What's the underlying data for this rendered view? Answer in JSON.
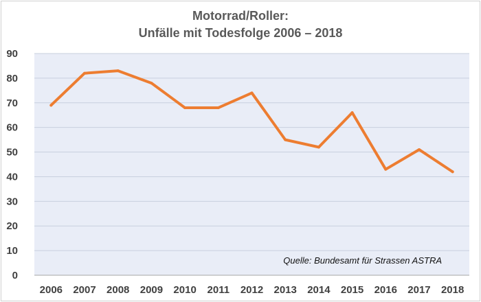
{
  "chart_data": {
    "type": "line",
    "title_line1": "Motorrad/Roller:",
    "title_line2": "Unfälle mit Todesfolge 2006 – 2018",
    "xlabel": "",
    "ylabel": "",
    "categories": [
      "2006",
      "2007",
      "2008",
      "2009",
      "2010",
      "2011",
      "2012",
      "2013",
      "2014",
      "2015",
      "2016",
      "2017",
      "2018"
    ],
    "series": [
      {
        "values": [
          69,
          82,
          83,
          78,
          68,
          68,
          74,
          55,
          52,
          66,
          43,
          51,
          42
        ],
        "color": "#ed7d31"
      }
    ],
    "ylim": [
      0,
      90
    ],
    "yticks": [
      "0",
      "10",
      "20",
      "30",
      "40",
      "50",
      "60",
      "70",
      "80",
      "90"
    ],
    "grid": true,
    "plot_background": "#e9edf7",
    "gridline_color": "#c8cfde",
    "source_note": "Quelle: Bundesamt für Strassen ASTRA"
  }
}
